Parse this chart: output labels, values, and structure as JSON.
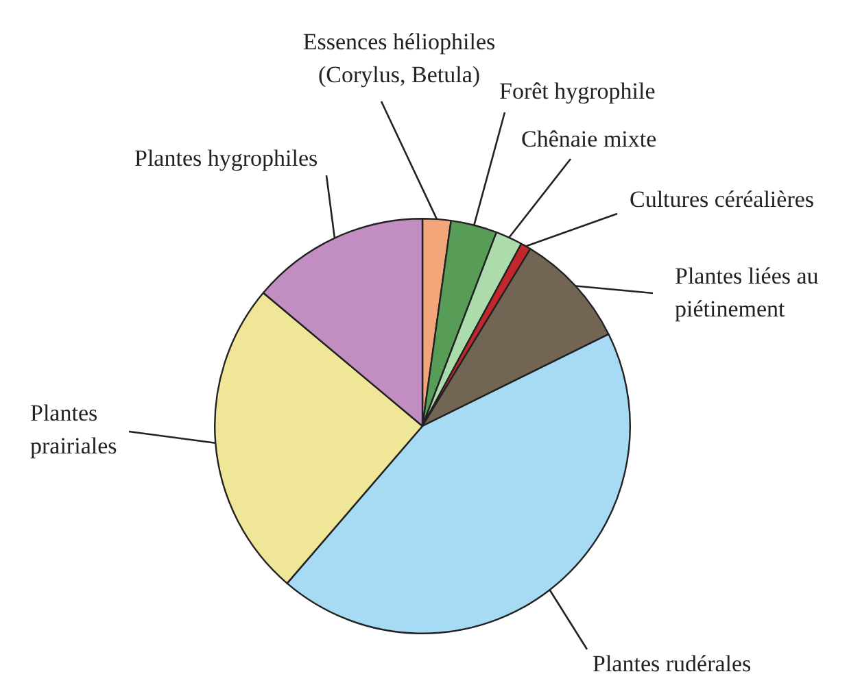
{
  "chart_data": {
    "type": "pie",
    "categories": [
      "Essences héliophiles (Corylus, Betula)",
      "Forêt hygrophile",
      "Chênaie mixte",
      "Cultures céréalières",
      "Plantes liées au piétinement",
      "Plantes rudérales",
      "Plantes prairiales",
      "Plantes hygrophiles"
    ],
    "values": [
      2.2,
      3.6,
      2.1,
      0.8,
      9,
      43.6,
      24.8,
      13.9
    ],
    "colors": [
      "#f2a67a",
      "#589d57",
      "#acdcab",
      "#c1272d",
      "#736553",
      "#a7daf3",
      "#f0e697",
      "#c28ec2"
    ],
    "legend": false
  }
}
